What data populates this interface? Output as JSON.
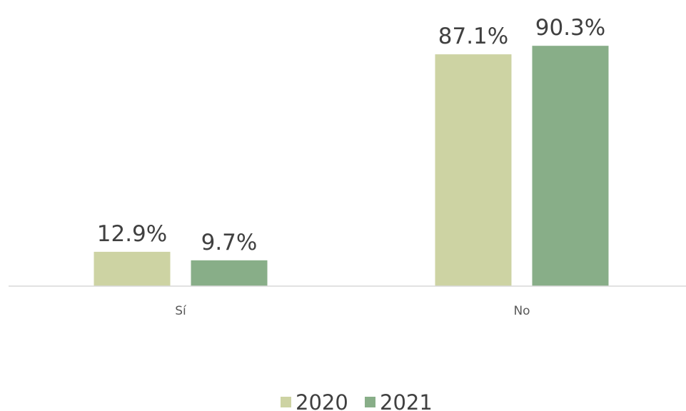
{
  "chart_data": {
    "type": "bar",
    "categories": [
      "Sí",
      "No"
    ],
    "series": [
      {
        "name": "2020",
        "values": [
          12.9,
          87.1
        ],
        "labels": [
          "12.9%",
          "87.1%"
        ],
        "color": "#cdd3a3"
      },
      {
        "name": "2021",
        "values": [
          9.7,
          90.3
        ],
        "labels": [
          "9.7%",
          "90.3%"
        ],
        "color": "#88ae88"
      }
    ],
    "title": "",
    "xlabel": "",
    "ylabel": "",
    "ylim": [
      0,
      100
    ],
    "grid": false,
    "legend_position": "bottom",
    "axis_line_color": "#d9d9d9"
  }
}
